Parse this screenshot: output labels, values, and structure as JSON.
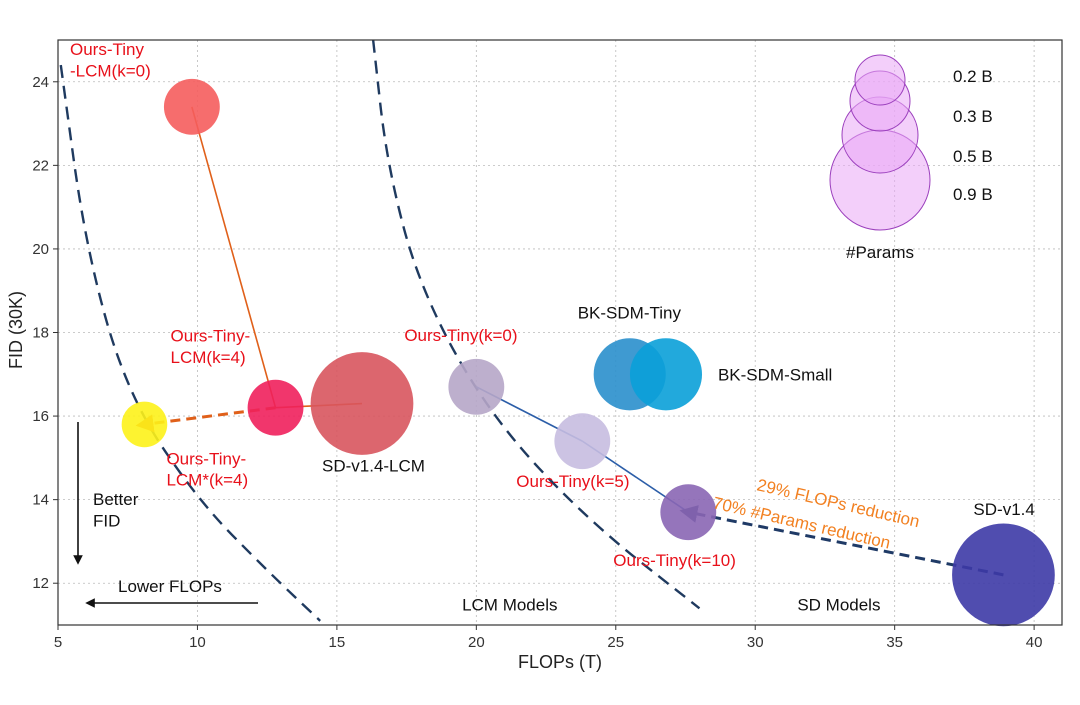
{
  "chart_data": {
    "type": "scatter",
    "subtype": "bubble",
    "title": "",
    "xlabel": "FLOPs (T)",
    "ylabel": "FID (30K)",
    "xlim": [
      5,
      41
    ],
    "ylim": [
      11,
      25
    ],
    "xticks": [
      5,
      10,
      15,
      20,
      25,
      30,
      35,
      40
    ],
    "yticks": [
      12,
      14,
      16,
      18,
      20,
      22,
      24
    ],
    "grid": true,
    "points": [
      {
        "name": "Ours-Tiny-LCM(k=0)",
        "label": "Ours-Tiny\n-LCM(k=0)",
        "x": 9.8,
        "y": 23.4,
        "params_b": 0.3,
        "color": "#f55d5d",
        "label_color": "#e8101a"
      },
      {
        "name": "Ours-Tiny-LCM(k=4)",
        "label": "Ours-Tiny-\nLCM(k=4)",
        "x": 12.8,
        "y": 16.2,
        "params_b": 0.3,
        "color": "#f0205c",
        "label_color": "#e8101a"
      },
      {
        "name": "Ours-Tiny-LCM*(k=4)",
        "label": "Ours-Tiny-\nLCM*(k=4)",
        "x": 8.1,
        "y": 15.8,
        "params_b": 0.2,
        "color": "#fdf21a",
        "label_color": "#e8101a"
      },
      {
        "name": "SD-v1.4-LCM",
        "label": "SD-v1.4-LCM",
        "x": 15.9,
        "y": 16.3,
        "params_b": 0.9,
        "color": "#d8555e",
        "label_color": "#111111"
      },
      {
        "name": "Ours-Tiny(k=0)",
        "label": "Ours-Tiny(k=0)",
        "x": 20.0,
        "y": 16.7,
        "params_b": 0.3,
        "color": "#b6a6c8",
        "label_color": "#e8101a"
      },
      {
        "name": "Ours-Tiny(k=5)",
        "label": "Ours-Tiny(k=5)",
        "x": 23.8,
        "y": 15.4,
        "params_b": 0.3,
        "color": "#c6bde0",
        "label_color": "#e8101a"
      },
      {
        "name": "Ours-Tiny(k=10)",
        "label": "Ours-Tiny(k=10)",
        "x": 27.6,
        "y": 13.7,
        "params_b": 0.3,
        "color": "#8a66b4",
        "label_color": "#e8101a"
      },
      {
        "name": "BK-SDM-Tiny",
        "label": "BK-SDM-Tiny",
        "x": 25.5,
        "y": 17.0,
        "params_b": 0.5,
        "color": "#2a8fcc",
        "label_color": "#111111"
      },
      {
        "name": "BK-SDM-Small",
        "label": "BK-SDM-Small",
        "x": 26.8,
        "y": 17.0,
        "params_b": 0.5,
        "color": "#0aa0d8",
        "label_color": "#111111"
      },
      {
        "name": "SD-v1.4",
        "label": "SD-v1.4",
        "x": 38.9,
        "y": 12.2,
        "params_b": 0.9,
        "color": "#3d3aa6",
        "label_color": "#111111"
      }
    ],
    "connectors": [
      {
        "from": "Ours-Tiny-LCM(k=0)",
        "to": "Ours-Tiny-LCM(k=4)",
        "style": "solid",
        "color": "#e0601a"
      },
      {
        "from": "SD-v1.4-LCM",
        "to": "Ours-Tiny-LCM(k=4)",
        "style": "solid",
        "color": "#e0601a"
      },
      {
        "from": "Ours-Tiny-LCM(k=4)",
        "to": "Ours-Tiny-LCM*(k=4)",
        "style": "dashed-arrow",
        "color": "#e0601a"
      },
      {
        "from": "Ours-Tiny(k=0)",
        "to": "Ours-Tiny(k=5)",
        "style": "solid",
        "color": "#2c5ea8"
      },
      {
        "from": "Ours-Tiny(k=5)",
        "to": "Ours-Tiny(k=10)",
        "style": "solid",
        "color": "#2c5ea8"
      },
      {
        "from": "SD-v1.4",
        "to": "Ours-Tiny(k=10)",
        "style": "dashed-arrow",
        "color": "#1f3a66"
      }
    ],
    "frontier_curves": [
      {
        "name": "LCM frontier",
        "points": [
          [
            5.1,
            24.4
          ],
          [
            6,
            20.0
          ],
          [
            7.5,
            16.5
          ],
          [
            10,
            14.0
          ],
          [
            12.5,
            12.3
          ],
          [
            14.4,
            11.1
          ]
        ]
      },
      {
        "name": "SD frontier",
        "points": [
          [
            16.3,
            25.0
          ],
          [
            16.8,
            22.0
          ],
          [
            18,
            19.0
          ],
          [
            20.5,
            16.0
          ],
          [
            24,
            13.5
          ],
          [
            28,
            11.4
          ]
        ]
      }
    ],
    "region_labels": [
      {
        "text": "LCM Models",
        "x": 21.2,
        "y": 11.35
      },
      {
        "text": "SD Models",
        "x": 33.0,
        "y": 11.35
      }
    ],
    "annotations": [
      {
        "text": "29% FLOPs reduction",
        "color": "#f28021"
      },
      {
        "text": "70% #Params reduction",
        "color": "#f28021"
      },
      {
        "text": "Better\nFID",
        "direction": "down"
      },
      {
        "text": "Lower FLOPs",
        "direction": "left"
      }
    ],
    "size_legend": {
      "title": "#Params",
      "entries": [
        {
          "label": "0.2 B",
          "value": 0.2
        },
        {
          "label": "0.3 B",
          "value": 0.3
        },
        {
          "label": "0.5 B",
          "value": 0.5
        },
        {
          "label": "0.9 B",
          "value": 0.9
        }
      ],
      "color": "#e9a8f6",
      "placement": "top-right"
    }
  }
}
